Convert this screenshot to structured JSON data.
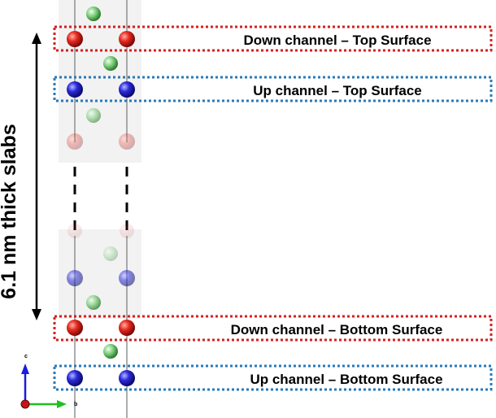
{
  "labels": {
    "slab_thickness": "6.1 nm thick slabs",
    "down_top": "Down channel – Top Surface",
    "up_top": "Up channel – Top Surface",
    "down_bottom": "Down channel – Bottom Surface",
    "up_bottom": "Up channel – Bottom Surface"
  },
  "axes": {
    "c": "c",
    "b": "b"
  },
  "colors": {
    "red_atom": "#e02020",
    "blue_atom": "#2a2ad8",
    "green_atom": "#5cc05c",
    "red_box": "#d42020",
    "blue_box": "#2a7ab8",
    "axis_c": "#1a1ae0",
    "axis_b": "#20c020",
    "axis_origin": "#c01818"
  }
}
